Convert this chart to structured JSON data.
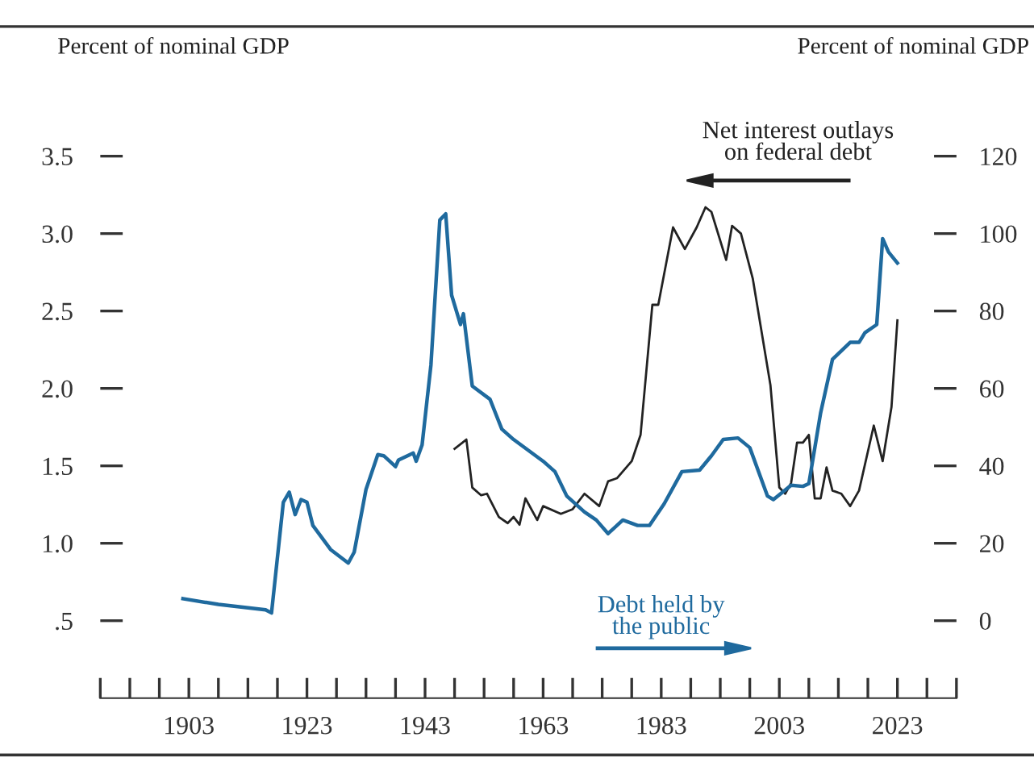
{
  "chart_data": {
    "type": "line",
    "ylabel": "Percent of nominal GDP",
    "y2label": "Percent of nominal GDP",
    "annotations": [
      "Net interest outlays\non federal debt",
      "Debt held by\nthe public"
    ],
    "xlim": [
      1888,
      2033
    ],
    "xticks": [
      {
        "value": 1888,
        "label": null
      },
      {
        "value": 1893,
        "label": null
      },
      {
        "value": 1898,
        "label": null
      },
      1903,
      {
        "value": 1908,
        "label": null
      },
      {
        "value": 1913,
        "label": null
      },
      {
        "value": 1918,
        "label": null
      },
      1923,
      {
        "value": 1928,
        "label": null
      },
      {
        "value": 1933,
        "label": null
      },
      {
        "value": 1938,
        "label": null
      },
      1943,
      {
        "value": 1948,
        "label": null
      },
      {
        "value": 1953,
        "label": null
      },
      {
        "value": 1958,
        "label": null
      },
      1963,
      {
        "value": 1968,
        "label": null
      },
      {
        "value": 1973,
        "label": null
      },
      {
        "value": 1978,
        "label": null
      },
      1983,
      {
        "value": 1988,
        "label": null
      },
      {
        "value": 1993,
        "label": null
      },
      {
        "value": 1998,
        "label": null
      },
      2003,
      {
        "value": 2008,
        "label": null
      },
      {
        "value": 2013,
        "label": null
      },
      {
        "value": 2018,
        "label": null
      },
      2023,
      {
        "value": 2028,
        "label": null
      },
      {
        "value": 2033,
        "label": null
      }
    ],
    "ylim": [
      0,
      3.5
    ],
    "yticks": [
      {
        "value": 0.5,
        "label": ".5"
      },
      {
        "value": 1.0,
        "label": "1.0"
      },
      {
        "value": 1.5,
        "label": "1.5"
      },
      {
        "value": 2.0,
        "label": "2.0"
      },
      {
        "value": 2.5,
        "label": "2.5"
      },
      {
        "value": 3.0,
        "label": "3.0"
      },
      {
        "value": 3.5,
        "label": "3.5"
      }
    ],
    "y2lim": [
      -20,
      120
    ],
    "y2ticks": [
      0,
      20,
      40,
      60,
      80,
      100,
      120
    ],
    "line_style": "solid",
    "series": [
      {
        "color": "#1f6a9e",
        "axis": "y2",
        "x": [
          1902,
          1908,
          1916,
          1917,
          1919,
          1920,
          1921,
          1922,
          1923,
          1924,
          1927,
          1930,
          1931,
          1933,
          1935,
          1936,
          1938,
          1938.5,
          1941,
          1941.5,
          1942.5,
          1944,
          1945.5,
          1946.5,
          1947.5,
          1949,
          1949.5,
          1951,
          1954,
          1956,
          1958,
          1963,
          1965,
          1967,
          1970,
          1972,
          1974,
          1976.5,
          1979,
          1981,
          1983.5,
          1986.5,
          1989.5,
          1991.5,
          1993.5,
          1996,
          1998,
          2001,
          2002,
          2005,
          2007,
          2008,
          2010,
          2012,
          2015,
          2016.5,
          2017.5,
          2019.5,
          2020.5,
          2021.5,
          2023
        ],
        "values": [
          5.7,
          4.2,
          2.8,
          2.0,
          30.6,
          33.2,
          27.4,
          31.3,
          30.6,
          24.6,
          18.4,
          14.9,
          17.7,
          33.9,
          42.9,
          42.6,
          39.8,
          41.5,
          43.3,
          41.2,
          45.4,
          66.1,
          103.5,
          105.1,
          84.1,
          76.5,
          79.3,
          60.6,
          57.2,
          49.5,
          46.8,
          41.2,
          38.5,
          32.2,
          28.1,
          26.0,
          22.5,
          26.0,
          24.6,
          24.6,
          30.2,
          38.5,
          38.9,
          42.6,
          46.8,
          47.2,
          44.7,
          32.2,
          31.3,
          35.0,
          34.7,
          35.4,
          53.7,
          67.5,
          71.9,
          71.9,
          74.4,
          76.5,
          98.7,
          95.2,
          92.4
        ]
      },
      {
        "color": "#222222",
        "axis": "y",
        "x": [
          1948,
          1950,
          1951,
          1952.5,
          1953.5,
          1955.5,
          1957,
          1958,
          1959,
          1960,
          1962,
          1963,
          1966,
          1968,
          1970,
          1972.5,
          1974,
          1975.5,
          1978,
          1979.5,
          1981.5,
          1982.5,
          1985,
          1987,
          1989,
          1990.5,
          1991.5,
          1994,
          1995,
          1996.5,
          1998.5,
          2001.5,
          2003,
          2004,
          2005,
          2006,
          2007,
          2008,
          2009,
          2010,
          2011,
          2012,
          2013.5,
          2015,
          2016.5,
          2019,
          2020.5,
          2022,
          2023
        ],
        "values": [
          1.61,
          1.67,
          1.36,
          1.31,
          1.32,
          1.17,
          1.13,
          1.17,
          1.12,
          1.29,
          1.15,
          1.24,
          1.19,
          1.22,
          1.32,
          1.24,
          1.4,
          1.42,
          1.53,
          1.7,
          2.54,
          2.54,
          3.04,
          2.9,
          3.04,
          3.17,
          3.14,
          2.83,
          3.05,
          3.0,
          2.71,
          2.02,
          1.36,
          1.32,
          1.39,
          1.65,
          1.65,
          1.7,
          1.29,
          1.29,
          1.49,
          1.34,
          1.32,
          1.24,
          1.34,
          1.76,
          1.53,
          1.88,
          2.44
        ]
      }
    ]
  }
}
